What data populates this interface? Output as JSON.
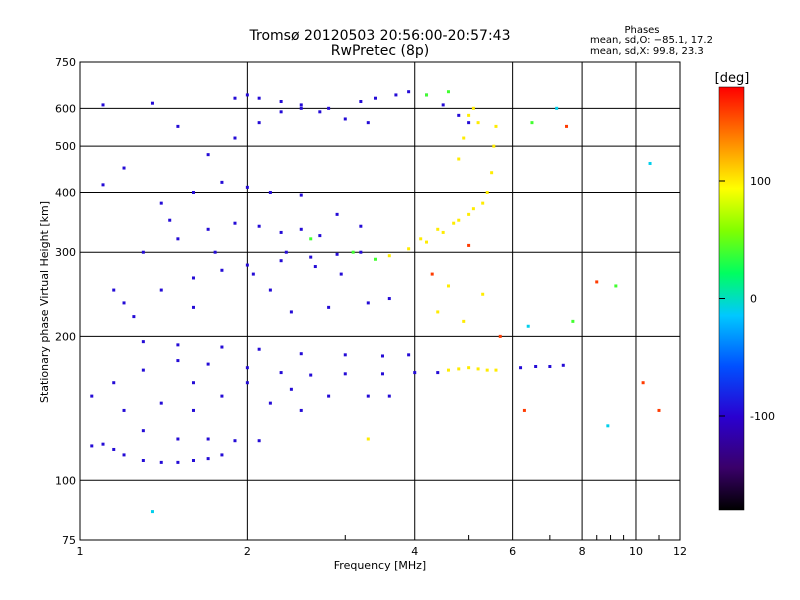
{
  "chart_data": {
    "type": "scatter",
    "title": "Tromsø 20120503 20:56:00-20:57:43",
    "subtitle": "RwPretec (8p)",
    "xlabel": "Frequency [MHz]",
    "ylabel": "Stationary phase Virtual Height [km]",
    "x_scale": "log",
    "y_scale": "log",
    "xlim": [
      1,
      12
    ],
    "ylim": [
      75,
      750
    ],
    "x_ticks": [
      1,
      2,
      4,
      6,
      8,
      10,
      12
    ],
    "y_ticks": [
      75,
      100,
      200,
      300,
      400,
      500,
      600,
      750
    ],
    "grid": true,
    "phases_box": {
      "heading": "Phases",
      "line1": "mean, sd,O:  −85.1, 17.2",
      "line2": "mean, sd,X:  99.8, 23.3"
    },
    "colorbar": {
      "label": "[deg]",
      "range": [
        -180,
        180
      ],
      "ticks": [
        100,
        0,
        -100
      ],
      "colormap": "rainbow"
    },
    "series": [
      {
        "mode": "O",
        "phase_deg": -95,
        "points": [
          [
            1.05,
            118
          ],
          [
            1.1,
            119
          ],
          [
            1.15,
            116
          ],
          [
            1.2,
            113
          ],
          [
            1.3,
            110
          ],
          [
            1.4,
            109
          ],
          [
            1.5,
            109
          ],
          [
            1.6,
            110
          ],
          [
            1.7,
            111
          ],
          [
            1.8,
            113
          ],
          [
            1.3,
            127
          ],
          [
            1.5,
            122
          ],
          [
            1.7,
            122
          ],
          [
            1.9,
            121
          ],
          [
            2.1,
            121
          ],
          [
            1.05,
            150
          ],
          [
            1.15,
            160
          ],
          [
            1.3,
            170
          ],
          [
            1.5,
            178
          ],
          [
            1.7,
            175
          ],
          [
            2.0,
            172
          ],
          [
            2.3,
            168
          ],
          [
            2.6,
            166
          ],
          [
            3.0,
            167
          ],
          [
            3.5,
            167
          ],
          [
            4.0,
            168
          ],
          [
            4.4,
            168
          ],
          [
            1.3,
            195
          ],
          [
            1.5,
            192
          ],
          [
            1.8,
            190
          ],
          [
            2.1,
            188
          ],
          [
            2.5,
            184
          ],
          [
            3.0,
            183
          ],
          [
            3.5,
            182
          ],
          [
            3.9,
            183
          ],
          [
            1.2,
            235
          ],
          [
            1.4,
            250
          ],
          [
            1.6,
            265
          ],
          [
            1.8,
            275
          ],
          [
            2.0,
            282
          ],
          [
            2.3,
            288
          ],
          [
            2.6,
            293
          ],
          [
            2.9,
            297
          ],
          [
            3.2,
            300
          ],
          [
            1.3,
            300
          ],
          [
            1.5,
            320
          ],
          [
            1.7,
            335
          ],
          [
            1.9,
            345
          ],
          [
            2.1,
            340
          ],
          [
            2.3,
            330
          ],
          [
            2.5,
            335
          ],
          [
            2.7,
            325
          ],
          [
            1.4,
            380
          ],
          [
            1.6,
            400
          ],
          [
            1.8,
            420
          ],
          [
            2.0,
            410
          ],
          [
            2.2,
            400
          ],
          [
            2.5,
            395
          ],
          [
            2.9,
            360
          ],
          [
            3.2,
            340
          ],
          [
            1.7,
            480
          ],
          [
            1.9,
            520
          ],
          [
            2.1,
            560
          ],
          [
            2.3,
            590
          ],
          [
            2.5,
            600
          ],
          [
            2.7,
            590
          ],
          [
            3.0,
            570
          ],
          [
            3.3,
            560
          ],
          [
            1.9,
            630
          ],
          [
            2.0,
            640
          ],
          [
            2.1,
            630
          ],
          [
            2.3,
            620
          ],
          [
            2.5,
            610
          ],
          [
            2.8,
            600
          ],
          [
            3.2,
            620
          ],
          [
            3.4,
            630
          ],
          [
            3.7,
            640
          ],
          [
            3.9,
            650
          ],
          [
            4.2,
            640
          ],
          [
            4.5,
            610
          ],
          [
            4.8,
            580
          ],
          [
            5.0,
            560
          ],
          [
            1.15,
            250
          ],
          [
            1.25,
            220
          ],
          [
            1.6,
            230
          ],
          [
            2.2,
            250
          ],
          [
            2.4,
            225
          ],
          [
            2.8,
            230
          ],
          [
            3.3,
            235
          ],
          [
            3.6,
            240
          ],
          [
            1.2,
            140
          ],
          [
            1.4,
            145
          ],
          [
            1.6,
            140
          ],
          [
            1.8,
            150
          ],
          [
            2.2,
            145
          ],
          [
            2.5,
            140
          ],
          [
            1.1,
            610
          ],
          [
            1.35,
            615
          ],
          [
            1.2,
            450
          ],
          [
            1.1,
            415
          ],
          [
            1.5,
            550
          ],
          [
            1.6,
            160
          ],
          [
            2.0,
            160
          ],
          [
            2.4,
            155
          ],
          [
            2.8,
            150
          ],
          [
            3.3,
            150
          ],
          [
            3.6,
            150
          ],
          [
            1.45,
            350
          ],
          [
            1.75,
            300
          ],
          [
            2.05,
            270
          ],
          [
            2.35,
            300
          ],
          [
            2.65,
            280
          ],
          [
            2.95,
            270
          ],
          [
            6.6,
            173
          ],
          [
            7.0,
            173
          ],
          [
            7.4,
            174
          ],
          [
            6.2,
            172
          ]
        ]
      },
      {
        "mode": "X",
        "phase_deg": 100,
        "points": [
          [
            3.6,
            295
          ],
          [
            3.9,
            305
          ],
          [
            4.2,
            315
          ],
          [
            4.5,
            330
          ],
          [
            4.8,
            350
          ],
          [
            5.1,
            370
          ],
          [
            5.4,
            400
          ],
          [
            5.5,
            440
          ],
          [
            5.55,
            500
          ],
          [
            5.6,
            550
          ],
          [
            4.1,
            320
          ],
          [
            4.4,
            335
          ],
          [
            4.7,
            345
          ],
          [
            5.0,
            360
          ],
          [
            5.3,
            380
          ],
          [
            4.8,
            470
          ],
          [
            4.9,
            520
          ],
          [
            5.0,
            580
          ],
          [
            5.1,
            600
          ],
          [
            5.2,
            560
          ],
          [
            4.6,
            170
          ],
          [
            4.8,
            171
          ],
          [
            5.0,
            172
          ],
          [
            5.2,
            171
          ],
          [
            5.4,
            170
          ],
          [
            5.6,
            170
          ],
          [
            3.3,
            122
          ],
          [
            4.4,
            225
          ],
          [
            4.6,
            255
          ],
          [
            4.9,
            215
          ],
          [
            5.3,
            245
          ]
        ]
      },
      {
        "mode": "scatter",
        "phase_deg": 40,
        "points": [
          [
            4.2,
            640
          ],
          [
            4.6,
            650
          ],
          [
            2.6,
            320
          ],
          [
            3.1,
            300
          ],
          [
            3.4,
            290
          ],
          [
            6.5,
            560
          ],
          [
            7.7,
            215
          ],
          [
            9.2,
            255
          ]
        ]
      },
      {
        "mode": "scatter",
        "phase_deg": 160,
        "points": [
          [
            4.3,
            270
          ],
          [
            5.7,
            200
          ],
          [
            6.3,
            140
          ],
          [
            7.5,
            550
          ],
          [
            8.5,
            260
          ],
          [
            10.3,
            160
          ],
          [
            11.0,
            140
          ],
          [
            5.0,
            310
          ]
        ]
      },
      {
        "mode": "scatter",
        "phase_deg": -10,
        "points": [
          [
            1.35,
            86
          ],
          [
            6.4,
            210
          ],
          [
            8.9,
            130
          ],
          [
            10.6,
            460
          ],
          [
            7.2,
            600
          ]
        ]
      }
    ]
  }
}
